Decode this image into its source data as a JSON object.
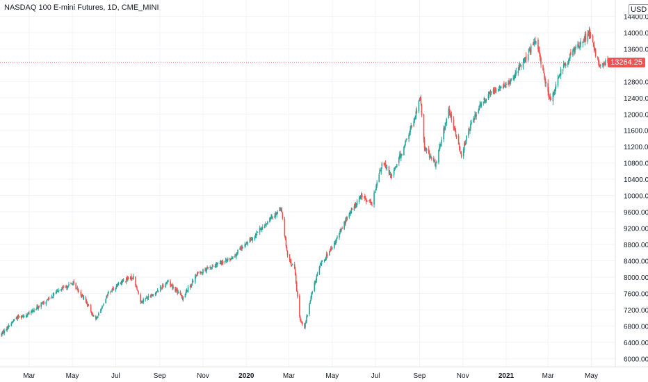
{
  "header": {
    "symbol_title": "NASDAQ 100 E-mini Futures, 1D, CME_MINI",
    "currency": "USD"
  },
  "last_price": {
    "label": "13264.25",
    "value": 13264.25
  },
  "colors": {
    "up": "#26a69a",
    "down": "#ef5350",
    "grid": "#f0f3fa",
    "text": "#131722"
  },
  "chart_data": {
    "type": "candlestick",
    "title": "NASDAQ 100 E-mini Futures, 1D, CME_MINI",
    "ylim": [
      5800,
      14800
    ],
    "y_ticks": [
      "6000.00",
      "6400.00",
      "6800.00",
      "7200.00",
      "7600.00",
      "8000.00",
      "8400.00",
      "8800.00",
      "9200.00",
      "9600.00",
      "10000.00",
      "10400.00",
      "10800.00",
      "11200.00",
      "11600.00",
      "12000.00",
      "12400.00",
      "12800.00",
      "13600.00",
      "14000.00",
      "14400.00"
    ],
    "x_ticks": [
      "Mar",
      "May",
      "Jul",
      "Sep",
      "Nov",
      "2020",
      "Mar",
      "May",
      "Jul",
      "Sep",
      "Nov",
      "2021",
      "Mar",
      "May"
    ],
    "x_range": [
      "2019-01-21",
      "2021-05-24"
    ],
    "price_path": [
      [
        "2019-01-21",
        6600
      ],
      [
        "2019-02-10",
        7000
      ],
      [
        "2019-03-01",
        7100
      ],
      [
        "2019-03-20",
        7350
      ],
      [
        "2019-04-10",
        7650
      ],
      [
        "2019-05-01",
        7850
      ],
      [
        "2019-05-15",
        7550
      ],
      [
        "2019-06-03",
        6950
      ],
      [
        "2019-06-20",
        7600
      ],
      [
        "2019-07-10",
        7900
      ],
      [
        "2019-07-26",
        8000
      ],
      [
        "2019-08-05",
        7400
      ],
      [
        "2019-08-25",
        7600
      ],
      [
        "2019-09-12",
        7900
      ],
      [
        "2019-10-03",
        7500
      ],
      [
        "2019-10-25",
        8100
      ],
      [
        "2019-11-20",
        8300
      ],
      [
        "2019-12-10",
        8450
      ],
      [
        "2019-12-31",
        8800
      ],
      [
        "2020-01-20",
        9150
      ],
      [
        "2020-02-19",
        9700
      ],
      [
        "2020-02-28",
        8500
      ],
      [
        "2020-03-09",
        8200
      ],
      [
        "2020-03-16",
        7000
      ],
      [
        "2020-03-23",
        6750
      ],
      [
        "2020-04-02",
        7600
      ],
      [
        "2020-04-15",
        8350
      ],
      [
        "2020-05-01",
        8700
      ],
      [
        "2020-05-20",
        9400
      ],
      [
        "2020-06-10",
        10000
      ],
      [
        "2020-06-26",
        9800
      ],
      [
        "2020-07-10",
        10800
      ],
      [
        "2020-07-24",
        10500
      ],
      [
        "2020-08-10",
        11200
      ],
      [
        "2020-08-25",
        11900
      ],
      [
        "2020-09-02",
        12400
      ],
      [
        "2020-09-08",
        11200
      ],
      [
        "2020-09-23",
        10750
      ],
      [
        "2020-10-12",
        12100
      ],
      [
        "2020-10-30",
        11000
      ],
      [
        "2020-11-09",
        11600
      ],
      [
        "2020-11-27",
        12300
      ],
      [
        "2020-12-15",
        12600
      ],
      [
        "2021-01-05",
        12750
      ],
      [
        "2021-01-25",
        13300
      ],
      [
        "2021-02-12",
        13800
      ],
      [
        "2021-03-04",
        12300
      ],
      [
        "2021-03-20",
        13100
      ],
      [
        "2021-04-08",
        13600
      ],
      [
        "2021-04-28",
        14000
      ],
      [
        "2021-05-12",
        13200
      ],
      [
        "2021-05-24",
        13264
      ]
    ]
  }
}
